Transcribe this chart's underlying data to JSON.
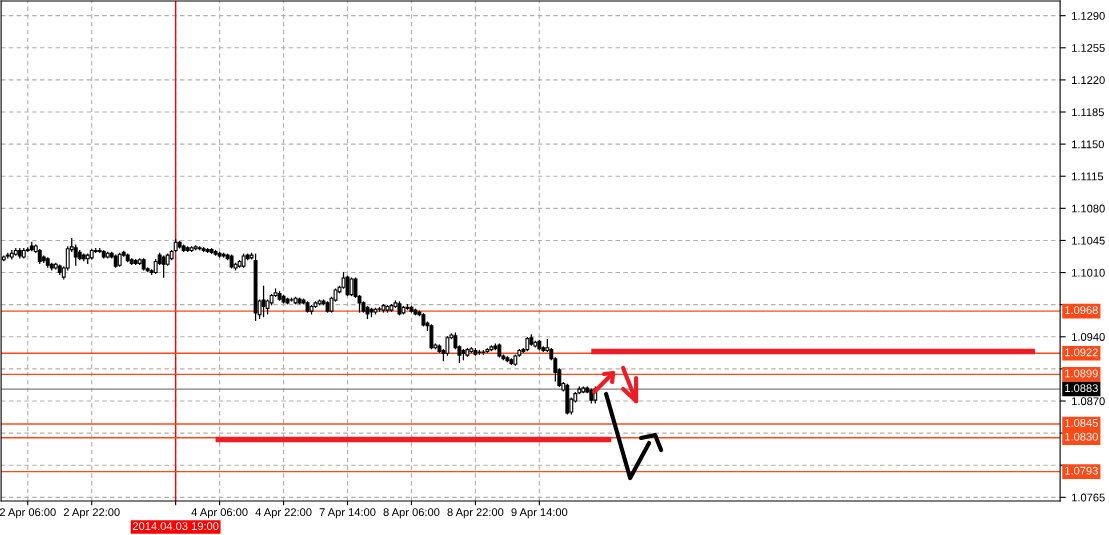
{
  "chart_data": {
    "type": "candlestick",
    "categories": [
      null,
      null,
      null,
      null,
      null,
      null,
      "2 Apr 06:00",
      null,
      null,
      null,
      null,
      null,
      null,
      null,
      null,
      null,
      null,
      null,
      null,
      null,
      null,
      null,
      "2 Apr 22:00",
      null,
      null,
      null,
      null,
      null,
      null,
      null,
      null,
      null,
      null,
      null,
      null,
      null,
      null,
      null,
      null,
      null,
      null,
      null,
      null,
      "2014.04.03 19:00",
      null,
      null,
      null,
      null,
      null,
      null,
      null,
      null,
      null,
      null,
      "4 Apr 06:00",
      null,
      null,
      null,
      null,
      null,
      null,
      null,
      null,
      null,
      null,
      null,
      null,
      null,
      null,
      null,
      "4 Apr 22:00",
      null,
      null,
      null,
      null,
      null,
      null,
      null,
      null,
      null,
      null,
      null,
      null,
      null,
      null,
      null,
      "7 Apr 14:00",
      null,
      null,
      null,
      null,
      null,
      null,
      null,
      null,
      null,
      null,
      null,
      null,
      null,
      null,
      null,
      "8 Apr 06:00",
      null,
      null,
      null,
      null,
      null,
      null,
      null,
      null,
      null,
      null,
      null,
      null,
      null,
      null,
      null,
      "8 Apr 22:00",
      null,
      null,
      null,
      null,
      null,
      null,
      null,
      null,
      null,
      null,
      null,
      null,
      null,
      null,
      null,
      "9 Apr 14:00",
      null,
      null,
      null,
      null,
      null,
      null,
      null,
      null,
      null,
      null,
      null,
      null,
      null,
      null,
      null,
      null,
      null,
      null,
      null,
      null,
      null,
      null,
      null,
      null,
      null,
      null,
      null,
      null,
      null,
      null,
      null,
      null,
      null,
      null,
      null,
      null,
      null,
      null,
      null,
      null,
      null,
      null,
      null,
      null,
      null,
      null,
      null,
      null,
      null,
      null,
      null,
      null,
      null,
      null,
      null,
      null,
      null,
      null,
      null,
      null,
      null,
      null,
      null,
      null,
      null,
      null,
      null,
      null,
      null,
      null,
      null,
      null,
      null,
      null,
      null,
      null,
      null,
      null,
      null,
      null,
      null,
      null,
      null,
      null,
      null,
      null,
      null,
      null,
      null,
      null,
      null,
      null,
      null,
      null,
      null,
      null,
      null,
      null,
      null,
      null,
      null,
      null,
      null,
      null,
      null,
      null,
      null,
      null,
      null,
      null,
      null,
      null,
      null,
      null,
      null,
      null,
      null,
      null,
      null,
      null,
      null,
      null,
      null,
      null,
      null,
      null,
      null,
      null,
      null,
      null
    ],
    "ohlc": [
      [
        1.1024,
        1.1028,
        1.1023,
        1.1027
      ],
      [
        1.1028,
        1.1031,
        1.1026,
        1.1029
      ],
      [
        1.1027,
        1.1034,
        1.1025,
        1.1031
      ],
      [
        1.103,
        1.1036,
        1.1029,
        1.1034
      ],
      [
        1.1034,
        1.1036,
        1.1026,
        1.1028
      ],
      [
        1.1027,
        1.1036,
        1.1026,
        1.1034
      ],
      [
        1.1035,
        1.1037,
        1.1033,
        1.1034
      ],
      [
        1.1039,
        1.1043,
        1.1034,
        1.1035
      ],
      [
        1.1033,
        1.104,
        1.1032,
        1.1039
      ],
      [
        1.1034,
        1.1035,
        1.102,
        1.1022
      ],
      [
        1.1027,
        1.1028,
        1.1021,
        1.1023
      ],
      [
        1.1025,
        1.1026,
        1.1016,
        1.1018
      ],
      [
        1.1019,
        1.102,
        1.1013,
        1.1015
      ],
      [
        1.1015,
        1.102,
        1.1014,
        1.1019
      ],
      [
        1.1017,
        1.1018,
        1.1008,
        1.101
      ],
      [
        1.1005,
        1.1016,
        1.1003,
        1.1015
      ],
      [
        1.1015,
        1.1038,
        1.1013,
        1.1036
      ],
      [
        1.1035,
        1.1047,
        1.1033,
        1.1038
      ],
      [
        1.1037,
        1.104,
        1.1018,
        1.1027
      ],
      [
        1.1032,
        1.1034,
        1.1024,
        1.1025
      ],
      [
        1.1029,
        1.103,
        1.1023,
        1.1025
      ],
      [
        1.1025,
        1.103,
        1.102,
        1.1029
      ],
      [
        1.1026,
        1.1035,
        1.1025,
        1.1034
      ],
      [
        1.1034,
        1.1036,
        1.1032,
        1.1033
      ],
      [
        1.1033,
        1.1036,
        1.1032,
        1.1034
      ],
      [
        1.1033,
        1.1034,
        1.1026,
        1.1027
      ],
      [
        1.1027,
        1.1032,
        1.1026,
        1.1031
      ],
      [
        1.1031,
        1.1032,
        1.1026,
        1.1027
      ],
      [
        1.1028,
        1.1029,
        1.1016,
        1.1017
      ],
      [
        1.1018,
        1.1031,
        1.1017,
        1.103
      ],
      [
        1.1032,
        1.1033,
        1.1028,
        1.1029
      ],
      [
        1.1029,
        1.103,
        1.1022,
        1.1023
      ],
      [
        1.1024,
        1.1025,
        1.1019,
        1.102
      ],
      [
        1.1023,
        1.1024,
        1.1019,
        1.102
      ],
      [
        1.102,
        1.1025,
        1.1019,
        1.1024
      ],
      [
        1.1024,
        1.1025,
        1.1013,
        1.1014
      ],
      [
        1.1014,
        1.1015,
        1.1011,
        1.1012
      ],
      [
        1.1012,
        1.1013,
        1.1008,
        1.101
      ],
      [
        1.101,
        1.1024,
        1.1009,
        1.1022
      ],
      [
        1.1029,
        1.1031,
        1.1019,
        1.102
      ],
      [
        1.1027,
        1.1028,
        1.1005,
        1.1019
      ],
      [
        1.1019,
        1.103,
        1.1018,
        1.1029
      ],
      [
        1.1025,
        1.1034,
        1.1024,
        1.1033
      ],
      [
        1.1034,
        1.1046,
        1.1033,
        1.1043
      ],
      [
        1.1043,
        1.1044,
        1.1037,
        1.1038
      ],
      [
        1.1039,
        1.104,
        1.1033,
        1.1034
      ],
      [
        1.1037,
        1.1038,
        1.1033,
        1.1034
      ],
      [
        1.1034,
        1.1038,
        1.1033,
        1.1037
      ],
      [
        1.1036,
        1.1039,
        1.1035,
        1.1038
      ],
      [
        1.1036,
        1.1038,
        1.1035,
        1.1037
      ],
      [
        1.1036,
        1.1037,
        1.1033,
        1.1034
      ],
      [
        1.1035,
        1.1036,
        1.1032,
        1.1033
      ],
      [
        1.1035,
        1.1036,
        1.1031,
        1.1032
      ],
      [
        1.1033,
        1.1034,
        1.1029,
        1.103
      ],
      [
        1.1031,
        1.1032,
        1.1027,
        1.1028
      ],
      [
        1.103,
        1.1031,
        1.1027,
        1.1028
      ],
      [
        1.1029,
        1.103,
        1.1024,
        1.1025
      ],
      [
        1.1028,
        1.1029,
        1.1015,
        1.1016
      ],
      [
        1.1015,
        1.102,
        1.1013,
        1.1019
      ],
      [
        1.1017,
        1.1023,
        1.1016,
        1.1022
      ],
      [
        1.1017,
        1.103,
        1.1016,
        1.1028
      ],
      [
        1.1029,
        1.103,
        1.1024,
        1.1025
      ],
      [
        1.1026,
        1.1031,
        1.1025,
        1.1029
      ],
      [
        1.1023,
        1.103,
        1.0958,
        1.0966
      ],
      [
        1.0964,
        1.098,
        1.096,
        1.0979
      ],
      [
        1.098,
        1.0995,
        1.0962,
        1.0973
      ],
      [
        1.0971,
        1.098,
        1.0965,
        1.0979
      ],
      [
        1.0977,
        1.0986,
        1.0975,
        1.0985
      ],
      [
        1.0985,
        1.0992,
        1.0984,
        1.0988
      ],
      [
        1.0987,
        1.0989,
        1.098,
        1.0981
      ],
      [
        1.0984,
        1.0985,
        1.0977,
        1.0978
      ],
      [
        1.0981,
        1.0982,
        1.0976,
        1.0977
      ],
      [
        1.098,
        1.0982,
        1.0979,
        1.098
      ],
      [
        1.0977,
        1.0983,
        1.0976,
        1.0982
      ],
      [
        1.0981,
        1.0982,
        1.0976,
        1.0977
      ],
      [
        1.098,
        1.0981,
        1.0976,
        1.0977
      ],
      [
        1.0977,
        1.0978,
        1.0967,
        1.0968
      ],
      [
        1.0968,
        1.0974,
        1.0965,
        1.0973
      ],
      [
        1.0973,
        1.0978,
        1.0972,
        1.0977
      ],
      [
        1.0976,
        1.098,
        1.0975,
        1.0979
      ],
      [
        1.0979,
        1.098,
        1.0975,
        1.0976
      ],
      [
        1.0977,
        1.0978,
        1.0967,
        1.0968
      ],
      [
        1.0968,
        1.0983,
        1.0967,
        1.0982
      ],
      [
        1.098,
        1.0992,
        1.0979,
        1.0991
      ],
      [
        1.0989,
        1.0995,
        1.0988,
        1.0994
      ],
      [
        1.0994,
        1.101,
        1.0993,
        1.1004
      ],
      [
        1.1005,
        1.1006,
        1.0985,
        1.0986
      ],
      [
        1.0986,
        1.1004,
        1.0985,
        1.1003
      ],
      [
        1.1003,
        1.1004,
        1.0983,
        1.0984
      ],
      [
        1.0984,
        1.0985,
        1.0967,
        1.0977
      ],
      [
        1.0977,
        1.0978,
        1.0967,
        1.0968
      ],
      [
        1.0972,
        1.0973,
        1.096,
        1.0965
      ],
      [
        1.097,
        1.0971,
        1.0962,
        1.0967
      ],
      [
        1.0967,
        1.0971,
        1.0965,
        1.097
      ],
      [
        1.097,
        1.0972,
        1.0968,
        1.097
      ],
      [
        1.0969,
        1.0975,
        1.0967,
        1.0974
      ],
      [
        1.0969,
        1.0974,
        1.0967,
        1.0973
      ],
      [
        1.0969,
        1.0975,
        1.0968,
        1.0974
      ],
      [
        1.0973,
        1.0979,
        1.0972,
        1.0977
      ],
      [
        1.0976,
        1.0978,
        1.0964,
        1.0965
      ],
      [
        1.0966,
        1.0973,
        1.0965,
        1.0972
      ],
      [
        1.0972,
        1.0975,
        1.097,
        1.0971
      ],
      [
        1.0972,
        1.0973,
        1.0967,
        1.0968
      ],
      [
        1.0969,
        1.097,
        1.0964,
        1.0965
      ],
      [
        1.0967,
        1.0968,
        1.0963,
        1.0964
      ],
      [
        1.0964,
        1.0965,
        1.0952,
        1.0953
      ],
      [
        1.0955,
        1.0956,
        1.0947,
        1.0952
      ],
      [
        1.0952,
        1.0953,
        1.0927,
        1.0928
      ],
      [
        1.0928,
        1.0932,
        1.0927,
        1.0931
      ],
      [
        1.093,
        1.0931,
        1.0923,
        1.0924
      ],
      [
        1.0925,
        1.0926,
        1.0914,
        1.0922
      ],
      [
        1.0922,
        1.094,
        1.092,
        1.0939
      ],
      [
        1.0939,
        1.0943,
        1.0938,
        1.0942
      ],
      [
        1.0941,
        1.0944,
        1.0927,
        1.0928
      ],
      [
        1.0929,
        1.093,
        1.0912,
        1.092
      ],
      [
        1.0925,
        1.0926,
        1.0915,
        1.0922
      ],
      [
        1.092,
        1.0927,
        1.0919,
        1.0926
      ],
      [
        1.0924,
        1.0928,
        1.0923,
        1.0927
      ],
      [
        1.0925,
        1.0927,
        1.092,
        1.0921
      ],
      [
        1.0923,
        1.0925,
        1.0921,
        1.0923
      ],
      [
        1.0923,
        1.0925,
        1.0921,
        1.0923
      ],
      [
        1.0924,
        1.0927,
        1.0923,
        1.0926
      ],
      [
        1.0926,
        1.093,
        1.0925,
        1.0929
      ],
      [
        1.093,
        1.0932,
        1.0926,
        1.0927
      ],
      [
        1.0931,
        1.0932,
        1.0918,
        1.0919
      ],
      [
        1.0919,
        1.092,
        1.0915,
        1.0916
      ],
      [
        1.0917,
        1.0918,
        1.0913,
        1.0914
      ],
      [
        1.0915,
        1.0916,
        1.091,
        1.0911
      ],
      [
        1.091,
        1.092,
        1.0909,
        1.0919
      ],
      [
        1.092,
        1.0926,
        1.0919,
        1.0925
      ],
      [
        1.0926,
        1.0927,
        1.0923,
        1.0924
      ],
      [
        1.0926,
        1.0939,
        1.0925,
        1.0938
      ],
      [
        1.0939,
        1.0942,
        1.0931,
        1.0932
      ],
      [
        1.093,
        1.0935,
        1.0929,
        1.0934
      ],
      [
        1.0935,
        1.0936,
        1.0926,
        1.0927
      ],
      [
        1.0928,
        1.0929,
        1.0924,
        1.0925
      ],
      [
        1.0925,
        1.0937,
        1.0924,
        1.0928
      ],
      [
        1.0926,
        1.0927,
        1.0915,
        1.0916
      ],
      [
        1.0916,
        1.0917,
        1.0892,
        1.0901
      ],
      [
        1.0904,
        1.0905,
        1.0886,
        1.0887
      ],
      [
        1.0882,
        1.089,
        1.0881,
        1.0889
      ],
      [
        1.0887,
        1.0888,
        1.0856,
        1.0857
      ],
      [
        1.0858,
        1.0873,
        1.0856,
        1.0872
      ],
      [
        1.087,
        1.0879,
        1.0869,
        1.0878
      ],
      [
        1.0879,
        1.0885,
        1.0878,
        1.0883
      ],
      [
        1.088,
        1.0885,
        1.0879,
        1.0884
      ],
      [
        1.0884,
        1.0885,
        1.0879,
        1.088
      ],
      [
        1.0882,
        1.0883,
        1.0868,
        1.0871
      ],
      [
        1.0871,
        1.0885,
        1.0868,
        1.0883
      ],
      null,
      null,
      null,
      null,
      null,
      null,
      null,
      null,
      null,
      null,
      null,
      null,
      null,
      null,
      null,
      null,
      null,
      null,
      null,
      null,
      null,
      null,
      null,
      null,
      null,
      null,
      null,
      null,
      null,
      null,
      null,
      null,
      null,
      null,
      null,
      null,
      null,
      null,
      null,
      null,
      null,
      null,
      null,
      null,
      null,
      null,
      null,
      null,
      null,
      null,
      null,
      null,
      null,
      null,
      null,
      null,
      null,
      null,
      null,
      null,
      null,
      null,
      null,
      null,
      null,
      null,
      null,
      null,
      null,
      null,
      null,
      null,
      null,
      null,
      null,
      null,
      null,
      null,
      null,
      null,
      null,
      null,
      null,
      null,
      null,
      null,
      null,
      null,
      null,
      null,
      null,
      null,
      null,
      null,
      null,
      null,
      null,
      null,
      null,
      null,
      null,
      null,
      null,
      null,
      null,
      null,
      null,
      null,
      null,
      null,
      null,
      null,
      null,
      null,
      null,
      null
    ],
    "series": [
      {
        "type": "line",
        "color": "#ee1c25",
        "values": [
          null,
          null,
          null,
          null,
          null,
          null,
          null,
          null,
          null,
          null,
          null,
          null,
          null,
          null,
          null,
          null,
          null,
          null,
          null,
          null,
          null,
          null,
          null,
          null,
          null,
          null,
          null,
          null,
          null,
          null,
          null,
          null,
          null,
          null,
          null,
          null,
          null,
          null,
          null,
          null,
          null,
          null,
          null,
          null,
          null,
          null,
          null,
          null,
          null,
          null,
          null,
          null,
          null,
          null,
          null,
          null,
          null,
          null,
          null,
          null,
          null,
          null,
          null,
          null,
          null,
          null,
          null,
          null,
          null,
          null,
          null,
          null,
          null,
          null,
          null,
          null,
          null,
          null,
          null,
          null,
          null,
          null,
          null,
          null,
          null,
          null,
          null,
          null,
          null,
          null,
          null,
          null,
          null,
          null,
          null,
          null,
          null,
          null,
          null,
          null,
          null,
          null,
          null,
          null,
          null,
          null,
          null,
          null,
          null,
          null,
          null,
          null,
          null,
          null,
          null,
          null,
          null,
          null,
          null,
          null,
          null,
          null,
          null,
          null,
          null,
          null,
          null,
          null,
          null,
          null,
          null,
          null,
          null,
          null,
          null,
          null,
          null,
          null,
          null,
          null,
          null,
          null,
          null,
          null,
          null,
          null,
          null,
          1.0924,
          null,
          null,
          null,
          null,
          null,
          null,
          null,
          null,
          null,
          null,
          null,
          null,
          null,
          null,
          null,
          null,
          null,
          null,
          null,
          null,
          null,
          null,
          null,
          null,
          null,
          null,
          null,
          null,
          null,
          null,
          null,
          null,
          null,
          null,
          null,
          null,
          null,
          null,
          null,
          null,
          null,
          null,
          null,
          null,
          null,
          null,
          null,
          null,
          null,
          null,
          null,
          null,
          null,
          null,
          null,
          null,
          null,
          null,
          null,
          null,
          null,
          null,
          null,
          null,
          null,
          null,
          null,
          null,
          null,
          null,
          null,
          null,
          null,
          null,
          null,
          null,
          null,
          null,
          null,
          null,
          null,
          null,
          null,
          null,
          null,
          null,
          null,
          null,
          null,
          null,
          null,
          null,
          null,
          null,
          null,
          null,
          null,
          null,
          null,
          null,
          null,
          null,
          null,
          null,
          null,
          null,
          null,
          null,
          null,
          null,
          1.0924,
          null,
          null,
          null,
          null,
          null,
          null
        ]
      },
      {
        "type": "line",
        "color": "#ee1c25",
        "values": [
          null,
          null,
          null,
          null,
          null,
          null,
          null,
          null,
          null,
          null,
          null,
          null,
          null,
          null,
          null,
          null,
          null,
          null,
          null,
          null,
          null,
          null,
          null,
          null,
          null,
          null,
          null,
          null,
          null,
          null,
          null,
          null,
          null,
          null,
          null,
          null,
          null,
          null,
          null,
          null,
          null,
          null,
          null,
          null,
          null,
          null,
          null,
          null,
          null,
          null,
          null,
          null,
          null,
          1.0828,
          null,
          null,
          null,
          null,
          null,
          null,
          null,
          null,
          null,
          null,
          null,
          null,
          null,
          null,
          null,
          null,
          null,
          null,
          null,
          null,
          null,
          null,
          null,
          null,
          null,
          null,
          null,
          null,
          null,
          null,
          null,
          null,
          null,
          null,
          null,
          null,
          null,
          null,
          null,
          null,
          null,
          null,
          null,
          null,
          null,
          null,
          null,
          null,
          null,
          null,
          null,
          null,
          null,
          null,
          null,
          null,
          null,
          null,
          null,
          null,
          null,
          null,
          null,
          null,
          null,
          null,
          null,
          null,
          null,
          null,
          null,
          null,
          null,
          null,
          null,
          null,
          null,
          null,
          null,
          null,
          null,
          null,
          null,
          null,
          null,
          null,
          null,
          null,
          null,
          null,
          null,
          null,
          null,
          null,
          null,
          null,
          null,
          null,
          1.0828,
          null,
          null,
          null,
          null,
          null,
          null,
          null,
          null,
          null,
          null,
          null,
          null,
          null,
          null,
          null,
          null,
          null,
          null,
          null,
          null,
          null,
          null,
          null,
          null,
          null,
          null,
          null,
          null,
          null,
          null,
          null,
          null,
          null,
          null,
          null,
          null,
          null,
          null,
          null,
          null,
          null,
          null,
          null,
          null,
          null,
          null,
          null,
          null,
          null,
          null,
          null,
          null,
          null,
          null,
          null,
          null,
          null,
          null,
          null,
          null,
          null,
          null,
          null,
          null,
          null,
          null,
          null,
          null,
          null,
          null,
          null,
          null,
          null,
          null,
          null,
          null,
          null,
          null,
          null,
          null,
          null,
          null,
          null,
          null,
          null,
          null,
          null,
          null,
          null,
          null,
          null,
          null,
          null,
          null,
          null,
          null,
          null,
          null,
          null,
          null,
          null,
          null,
          null,
          null,
          null,
          null,
          null,
          null,
          null,
          null,
          null,
          null
        ]
      }
    ],
    "ylim": [
      1.0761,
      1.1306
    ],
    "yticks": [
      {
        "value": 1.0765,
        "label": "1.0765"
      },
      {
        "value": 1.08,
        "label": null
      },
      {
        "value": 1.0835,
        "label": null
      },
      {
        "value": 1.087,
        "label": "1.0870"
      },
      {
        "value": 1.0905,
        "label": null
      },
      {
        "value": 1.094,
        "label": "1.0940"
      },
      {
        "value": 1.0975,
        "label": null
      },
      {
        "value": 1.101,
        "label": "1.1010"
      },
      {
        "value": 1.1045,
        "label": "1.1045"
      },
      {
        "value": 1.108,
        "label": "1.1080"
      },
      {
        "value": 1.1115,
        "label": "1.1115"
      },
      {
        "value": 1.115,
        "label": "1.1150"
      },
      {
        "value": 1.1185,
        "label": "1.1185"
      },
      {
        "value": 1.122,
        "label": "1.1220"
      },
      {
        "value": 1.1255,
        "label": "1.1255"
      },
      {
        "value": 1.129,
        "label": "1.1290"
      }
    ],
    "ref_lines": [
      {
        "axis": "x",
        "value": "2014.04.03 19:00",
        "color": "#ff0000"
      },
      {
        "axis": "y",
        "value": 1.0968,
        "label": "1.0968",
        "color": "#ff4a17"
      },
      {
        "axis": "y",
        "value": 1.0922,
        "label": "1.0922",
        "color": "#ff4a17"
      },
      {
        "axis": "y",
        "value": 1.0899,
        "label": "1.0899",
        "color": "#ff4a17"
      },
      {
        "axis": "y",
        "value": 1.0883,
        "label": "1.0883",
        "color": "#7f7f7f"
      },
      {
        "axis": "y",
        "value": 1.0845,
        "label": "1.0845",
        "color": "#ff4a17"
      },
      {
        "axis": "y",
        "value": 1.083,
        "label": "1.0830",
        "color": "#ff4a17"
      },
      {
        "axis": "y",
        "value": 1.0793,
        "label": "1.0793",
        "color": "#ff4a17"
      }
    ],
    "grid": true
  }
}
